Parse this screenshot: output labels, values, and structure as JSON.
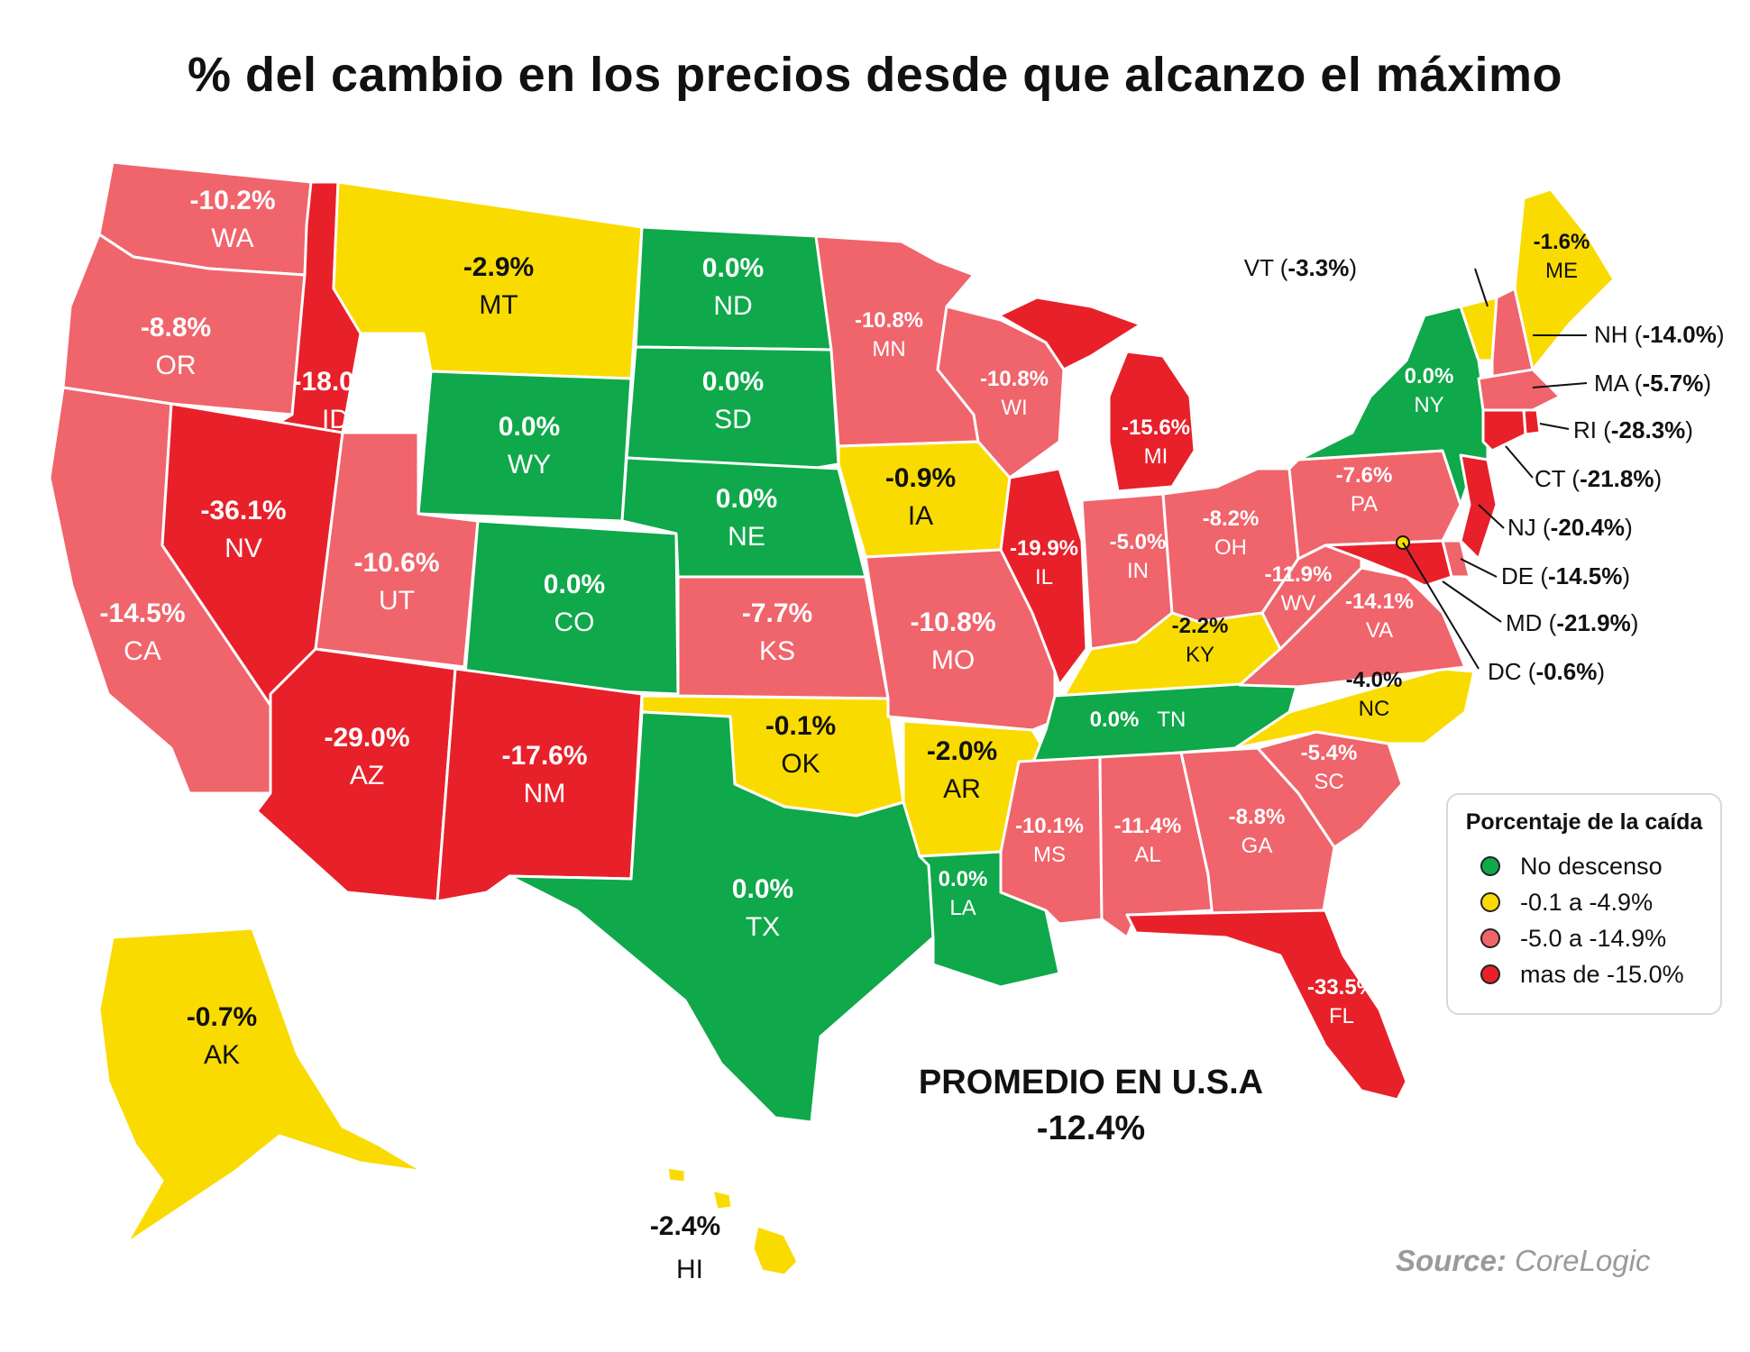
{
  "title": "% del cambio en los precios desde que alcanzo el máximo",
  "colors": {
    "no_descenso": "#0fa84a",
    "leve": "#fadb00",
    "medio": "#f0646c",
    "alto": "#e8202a"
  },
  "states": [
    {
      "code": "WA",
      "value": "-10.2%",
      "category": "medio"
    },
    {
      "code": "OR",
      "value": "-8.8%",
      "category": "medio"
    },
    {
      "code": "CA",
      "value": "-14.5%",
      "category": "medio"
    },
    {
      "code": "ID",
      "value": "-18.0%",
      "category": "alto"
    },
    {
      "code": "NV",
      "value": "-36.1%",
      "category": "alto"
    },
    {
      "code": "MT",
      "value": "-2.9%",
      "category": "leve"
    },
    {
      "code": "WY",
      "value": "0.0%",
      "category": "no_descenso"
    },
    {
      "code": "UT",
      "value": "-10.6%",
      "category": "medio"
    },
    {
      "code": "CO",
      "value": "0.0%",
      "category": "no_descenso"
    },
    {
      "code": "AZ",
      "value": "-29.0%",
      "category": "alto"
    },
    {
      "code": "NM",
      "value": "-17.6%",
      "category": "alto"
    },
    {
      "code": "ND",
      "value": "0.0%",
      "category": "no_descenso"
    },
    {
      "code": "SD",
      "value": "0.0%",
      "category": "no_descenso"
    },
    {
      "code": "NE",
      "value": "0.0%",
      "category": "no_descenso"
    },
    {
      "code": "KS",
      "value": "-7.7%",
      "category": "medio"
    },
    {
      "code": "OK",
      "value": "-0.1%",
      "category": "leve"
    },
    {
      "code": "TX",
      "value": "0.0%",
      "category": "no_descenso"
    },
    {
      "code": "MN",
      "value": "-10.8%",
      "category": "medio"
    },
    {
      "code": "IA",
      "value": "-0.9%",
      "category": "leve"
    },
    {
      "code": "MO",
      "value": "-10.8%",
      "category": "medio"
    },
    {
      "code": "AR",
      "value": "-2.0%",
      "category": "leve"
    },
    {
      "code": "LA",
      "value": "0.0%",
      "category": "no_descenso"
    },
    {
      "code": "WI",
      "value": "-10.8%",
      "category": "medio"
    },
    {
      "code": "IL",
      "value": "-19.9%",
      "category": "alto"
    },
    {
      "code": "MI",
      "value": "-15.6%",
      "category": "alto"
    },
    {
      "code": "IN",
      "value": "-5.0%",
      "category": "medio"
    },
    {
      "code": "OH",
      "value": "-8.2%",
      "category": "medio"
    },
    {
      "code": "KY",
      "value": "-2.2%",
      "category": "leve"
    },
    {
      "code": "TN",
      "value": "0.0%",
      "category": "no_descenso"
    },
    {
      "code": "MS",
      "value": "-10.1%",
      "category": "medio"
    },
    {
      "code": "AL",
      "value": "-11.4%",
      "category": "medio"
    },
    {
      "code": "GA",
      "value": "-8.8%",
      "category": "medio"
    },
    {
      "code": "FL",
      "value": "-33.5%",
      "category": "alto"
    },
    {
      "code": "SC",
      "value": "-5.4%",
      "category": "medio"
    },
    {
      "code": "NC",
      "value": "-4.0%",
      "category": "leve"
    },
    {
      "code": "VA",
      "value": "-14.1%",
      "category": "medio"
    },
    {
      "code": "WV",
      "value": "-11.9%",
      "category": "medio"
    },
    {
      "code": "PA",
      "value": "-7.6%",
      "category": "medio"
    },
    {
      "code": "NY",
      "value": "0.0%",
      "category": "no_descenso"
    },
    {
      "code": "ME",
      "value": "-1.6%",
      "category": "leve"
    },
    {
      "code": "AK",
      "value": "-0.7%",
      "category": "leve"
    },
    {
      "code": "HI",
      "value": "-2.4%",
      "category": "leve"
    }
  ],
  "callouts": [
    {
      "code": "VT",
      "value": "-3.3%",
      "category": "leve"
    },
    {
      "code": "NH",
      "value": "-14.0%",
      "category": "medio"
    },
    {
      "code": "MA",
      "value": "-5.7%",
      "category": "medio"
    },
    {
      "code": "RI",
      "value": "-28.3%",
      "category": "alto"
    },
    {
      "code": "CT",
      "value": "-21.8%",
      "category": "alto"
    },
    {
      "code": "NJ",
      "value": "-20.4%",
      "category": "alto"
    },
    {
      "code": "DE",
      "value": "-14.5%",
      "category": "medio"
    },
    {
      "code": "MD",
      "value": "-21.9%",
      "category": "alto"
    },
    {
      "code": "DC",
      "value": "-0.6%",
      "category": "leve"
    }
  ],
  "legend": {
    "title": "Porcentaje de la caída",
    "items": [
      {
        "label": "No descenso",
        "category": "no_descenso"
      },
      {
        "label": "-0.1 a -4.9%",
        "category": "leve"
      },
      {
        "label": "-5.0 a -14.9%",
        "category": "medio"
      },
      {
        "label": "mas de -15.0%",
        "category": "alto"
      }
    ]
  },
  "average": {
    "label": "PROMEDIO EN U.S.A",
    "value": "-12.4%"
  },
  "source": {
    "prefix": "Source:",
    "name": "CoreLogic"
  }
}
